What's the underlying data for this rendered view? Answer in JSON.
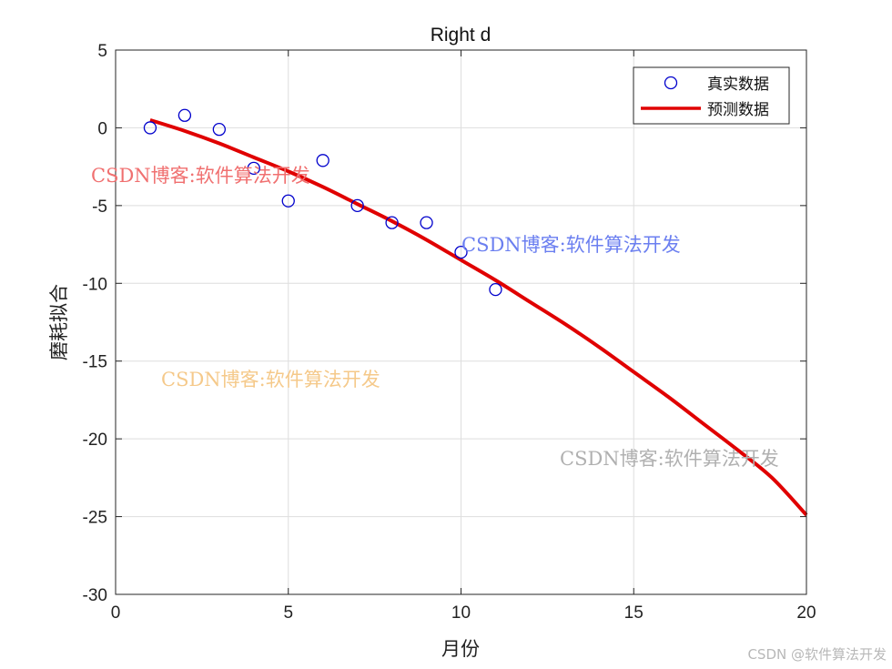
{
  "chart_data": {
    "type": "scatter",
    "title": "Right d",
    "xlabel": "月份",
    "ylabel": "磨耗拟合",
    "xlim": [
      0,
      20
    ],
    "ylim": [
      -30,
      5
    ],
    "xticks": [
      0,
      5,
      10,
      15,
      20
    ],
    "yticks": [
      5,
      0,
      -5,
      -10,
      -15,
      -20,
      -25,
      -30
    ],
    "grid": true,
    "legend_position": "top-right",
    "series": [
      {
        "name": "真实数据",
        "kind": "scatter",
        "marker": "circle-open",
        "color": "#0000cc",
        "x": [
          1,
          2,
          3,
          4,
          5,
          6,
          7,
          8,
          9,
          10,
          11
        ],
        "y": [
          0,
          0.8,
          -0.1,
          -2.6,
          -4.7,
          -2.1,
          -5.0,
          -6.1,
          -6.1,
          -8.0,
          -10.4
        ]
      },
      {
        "name": "预测数据",
        "kind": "line",
        "color": "#e00000",
        "x": [
          1,
          2,
          3,
          4,
          5,
          6,
          7,
          8,
          9,
          10,
          11,
          12,
          13,
          14,
          15,
          16,
          17,
          18,
          19,
          20
        ],
        "y": [
          0.5,
          -0.2,
          -1.0,
          -1.9,
          -2.8,
          -3.8,
          -4.9,
          -6.0,
          -7.2,
          -8.5,
          -9.8,
          -11.2,
          -12.6,
          -14.1,
          -15.7,
          -17.3,
          -19.0,
          -20.7,
          -22.5,
          -24.9
        ]
      }
    ]
  },
  "watermarks": {
    "red": "CSDN博客:软件算法开发",
    "blue": "CSDN博客:软件算法开发",
    "orange": "CSDN博客:软件算法开发",
    "gray": "CSDN博客:软件算法开发",
    "footer": "CSDN @软件算法开发"
  },
  "colors": {
    "scatter": "#0000cc",
    "line": "#e00000",
    "wm_red": "#f07070",
    "wm_blue": "#6b7ff0",
    "wm_orange": "#f5c98a",
    "wm_gray": "#b0b0b0"
  }
}
